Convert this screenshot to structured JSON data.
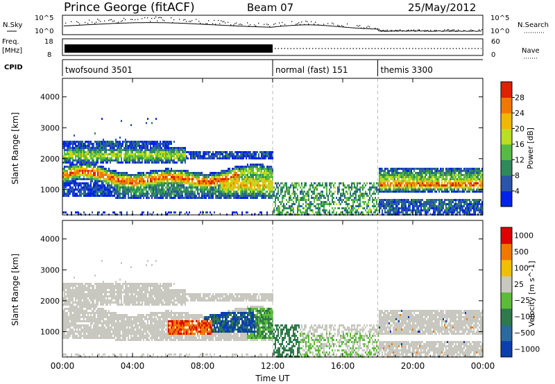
{
  "header": {
    "station": "Prince George (fitACF)",
    "beam": "Beam 07",
    "date": "25/May/2012"
  },
  "strip_panels": {
    "nsky": {
      "left_label": "N.Sky",
      "right_label": "N.Search",
      "left_ticks": [
        "10^5",
        "10^0"
      ],
      "right_ticks": [
        "10^5",
        "10^0"
      ]
    },
    "freq": {
      "left_label": "Freq.",
      "unit": "[MHz]",
      "left_ticks": [
        "18",
        "8"
      ],
      "right_ticks": [
        "60",
        "0"
      ],
      "right_label": "Nave"
    },
    "cpid": {
      "label": "CPID",
      "modes": [
        {
          "name": "twofsound 3501",
          "start_hour": 0
        },
        {
          "name": "normal (fast) 151",
          "start_hour": 12
        },
        {
          "name": "themis 3300",
          "start_hour": 18
        }
      ]
    }
  },
  "chart_data": [
    {
      "type": "heatmap",
      "title": "",
      "ylabel": "Slant Range [km]",
      "ylim": [
        180,
        4600
      ],
      "yticks": [
        "4000",
        "3000",
        "2000",
        "1000"
      ],
      "ytick_values": [
        4000,
        3000,
        2000,
        1000
      ],
      "xlim": [
        "00:00",
        "24:00"
      ],
      "colorbar": {
        "label": "Power [dB]",
        "ticks": [
          "28",
          "24",
          "20",
          "16",
          "12",
          "8",
          "4"
        ],
        "range": [
          0,
          30
        ],
        "colors": [
          "#0022ee",
          "#2a55a8",
          "#2f8a5a",
          "#55bb44",
          "#bbdd22",
          "#f0b800",
          "#f07800",
          "#e02000"
        ]
      },
      "mode_boundaries_hours": [
        12,
        18
      ]
    },
    {
      "type": "heatmap",
      "title": "",
      "ylabel": "Slant Range [km]",
      "ylim": [
        180,
        4600
      ],
      "yticks": [
        "4000",
        "3000",
        "2000",
        "1000"
      ],
      "ytick_values": [
        4000,
        3000,
        2000,
        1000
      ],
      "xlabel": "Time UT",
      "xticks": [
        "00:00",
        "04:00",
        "08:00",
        "12:00",
        "16:00",
        "20:00",
        "00:00"
      ],
      "xtick_hours": [
        0,
        4,
        8,
        12,
        16,
        20,
        24
      ],
      "colorbar": {
        "label": "Velocity [m s^-1]",
        "ticks": [
          "1000",
          "500",
          "100",
          "25",
          "−25",
          "−100",
          "−500",
          "−1000"
        ],
        "colors": [
          "#0b3fb0",
          "#2a6aa0",
          "#2e7a4a",
          "#5dbb3a",
          "#c8c8c0",
          "#f0c000",
          "#f07800",
          "#e00000"
        ]
      },
      "mode_boundaries_hours": [
        12,
        18
      ]
    }
  ]
}
